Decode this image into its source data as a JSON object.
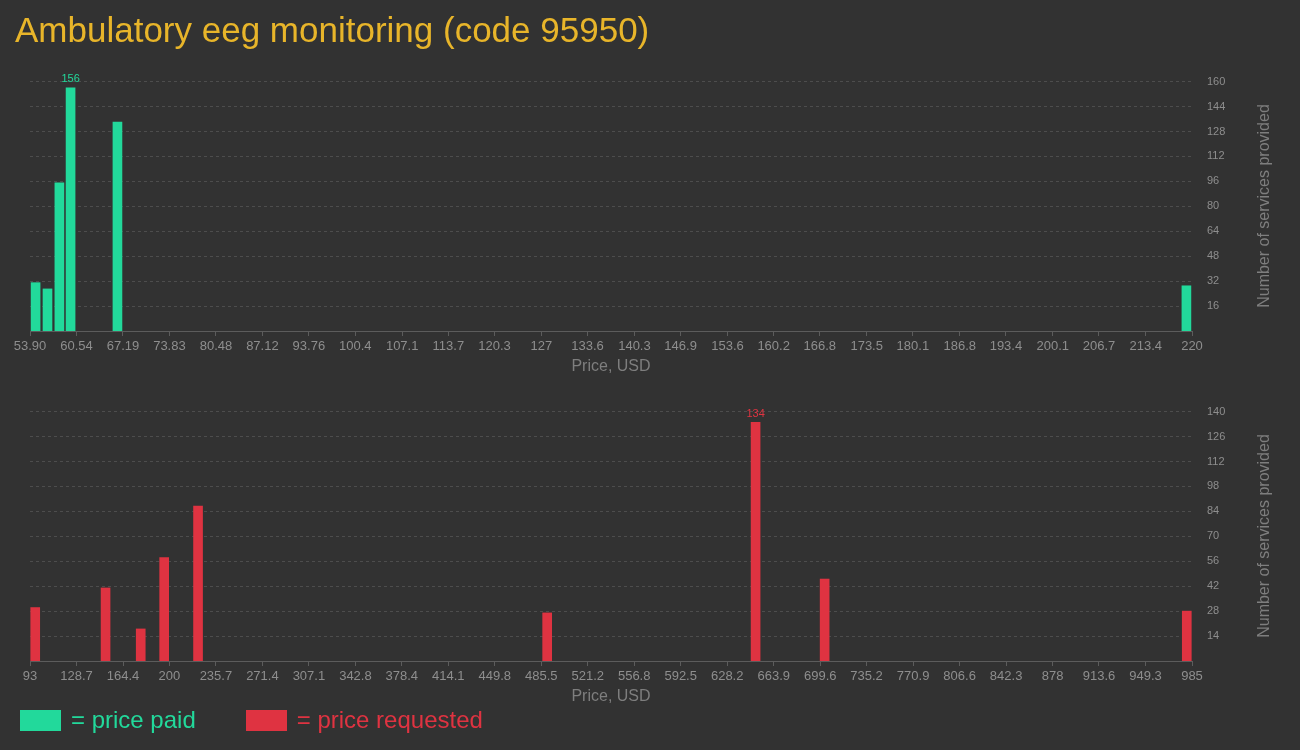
{
  "chart_data": [
    {
      "type": "bar",
      "title": "Ambulatory eeg monitoring (code 95950)",
      "xlabel": "Price, USD",
      "ylabel": "Number of services provided",
      "x": [
        54.7,
        56.4,
        58.1,
        59.7,
        66.4,
        219.2
      ],
      "series": [
        {
          "name": "= price paid",
          "color": "#22d99b",
          "values": [
            31,
            27,
            95,
            156,
            134,
            29
          ],
          "value_labels": [
            null,
            null,
            null,
            "156",
            null,
            null
          ]
        }
      ],
      "xlim": [
        53.9,
        220
      ],
      "xticks": [
        {
          "value": 53.9,
          "label": "53.90"
        },
        60.54,
        67.19,
        73.83,
        80.48,
        87.12,
        93.76,
        100.4,
        107.1,
        113.7,
        120.3,
        127,
        133.6,
        140.3,
        146.9,
        153.6,
        160.2,
        166.8,
        173.5,
        180.1,
        186.8,
        193.4,
        200.1,
        206.7,
        213.4,
        220
      ],
      "ylim": [
        0,
        160
      ],
      "yticks": [
        16,
        32,
        48,
        64,
        80,
        96,
        112,
        128,
        144,
        160
      ],
      "grid": "y",
      "legend": "bottom"
    },
    {
      "type": "bar",
      "xlabel": "Price, USD",
      "ylabel": "Number of services provided",
      "x": [
        97,
        151,
        178,
        196,
        222,
        490,
        650,
        703,
        981
      ],
      "series": [
        {
          "name": "= price requested",
          "color": "#df3341",
          "values": [
            30,
            41,
            18,
            58,
            87,
            27,
            134,
            46,
            28
          ],
          "value_labels": [
            null,
            null,
            null,
            null,
            null,
            null,
            "134",
            null,
            null
          ]
        }
      ],
      "xlim": [
        93,
        985
      ],
      "xticks": [
        93,
        128.7,
        164.4,
        200,
        235.7,
        271.4,
        307.1,
        342.8,
        378.4,
        414.1,
        449.8,
        485.5,
        521.2,
        556.8,
        592.5,
        628.2,
        663.9,
        699.6,
        735.2,
        770.9,
        806.6,
        842.3,
        878,
        913.6,
        949.3,
        985
      ],
      "ylim": [
        0,
        140
      ],
      "yticks": [
        14,
        28,
        42,
        56,
        70,
        84,
        98,
        112,
        126,
        140
      ],
      "grid": "y",
      "legend": "bottom"
    }
  ]
}
